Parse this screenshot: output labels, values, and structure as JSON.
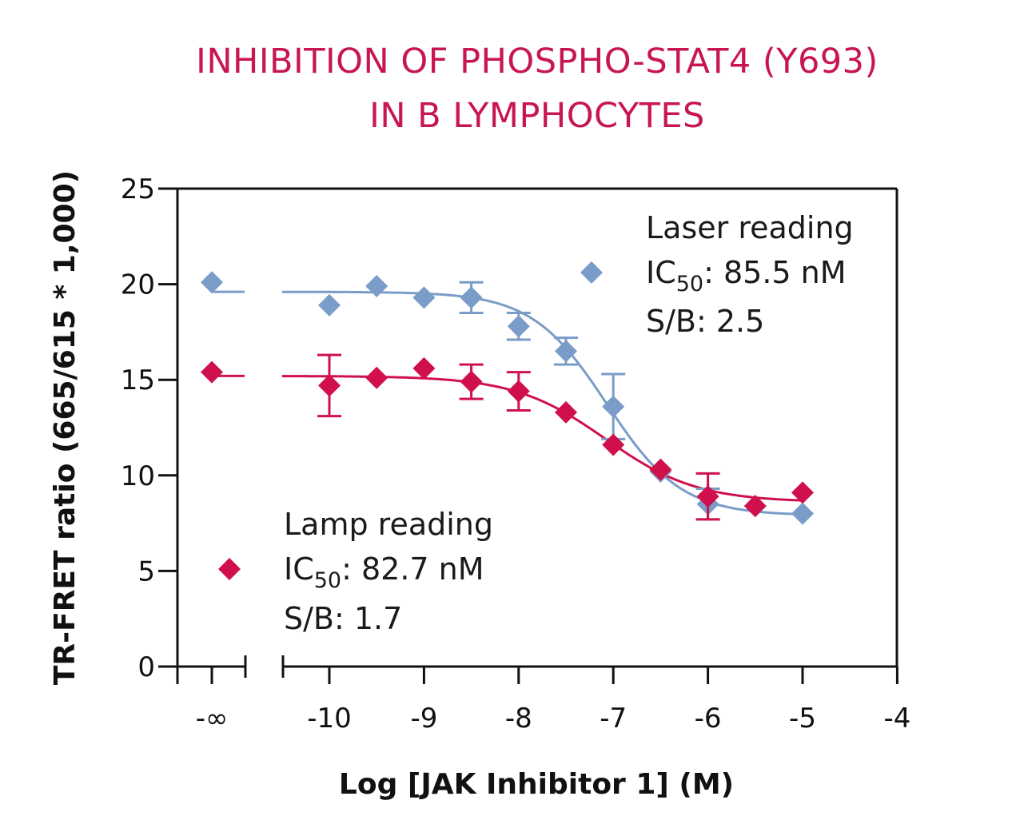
{
  "chart_data": {
    "type": "scatter",
    "title_line1": "INHIBITION OF PHOSPHO-STAT4 (Y693)",
    "title_line2": "IN B LYMPHOCYTES",
    "xlabel": "Log [JAK Inhibitor 1] (M)",
    "ylabel": "TR-FRET ratio (665/615 * 1,000)",
    "ylim": [
      0,
      25
    ],
    "xlim": [
      -10.5,
      -4
    ],
    "x_broken_axis": true,
    "y_ticks": [
      "0",
      "5",
      "10",
      "15",
      "20",
      "25"
    ],
    "y_tick_values": [
      0,
      5,
      10,
      15,
      20,
      25
    ],
    "x_ticks": [
      "-∞",
      "-10",
      "-9",
      "-8",
      "-7",
      "-6",
      "-5",
      "-4"
    ],
    "x_tick_values": [
      null,
      -10,
      -9,
      -8,
      -7,
      -6,
      -5,
      -4
    ],
    "series": [
      {
        "name": "Laser reading",
        "ic50_prefix": "IC",
        "ic50_sub": "50",
        "ic50_value": ": 85.5 nM",
        "sb_text": "S/B: 2.5",
        "color": "#7a9cc9",
        "zero_point": 20.1,
        "fit": {
          "top": 19.6,
          "bottom": 7.9,
          "logIC50": -7.07,
          "hill": 1.1
        },
        "points": [
          {
            "x": -10,
            "y": 18.9,
            "err": 0
          },
          {
            "x": -9.5,
            "y": 19.9,
            "err": 0
          },
          {
            "x": -9,
            "y": 19.3,
            "err": 0
          },
          {
            "x": -8.5,
            "y": 19.3,
            "err": 0.8
          },
          {
            "x": -8,
            "y": 17.8,
            "err": 0.7
          },
          {
            "x": -7.5,
            "y": 16.5,
            "err": 0.7
          },
          {
            "x": -7,
            "y": 13.6,
            "err": 1.7
          },
          {
            "x": -6.5,
            "y": 10.2,
            "err": 0
          },
          {
            "x": -6,
            "y": 8.5,
            "err": 0.8
          },
          {
            "x": -5.5,
            "y": 8.4,
            "err": 0
          },
          {
            "x": -5,
            "y": 8.0,
            "err": 0
          }
        ]
      },
      {
        "name": "Lamp reading",
        "ic50_prefix": "IC",
        "ic50_sub": "50",
        "ic50_value": ": 82.7 nM",
        "sb_text": "S/B: 1.7",
        "color": "#d0104c",
        "zero_point": 15.4,
        "fit": {
          "top": 15.2,
          "bottom": 8.6,
          "logIC50": -7.08,
          "hill": 0.9
        },
        "points": [
          {
            "x": -10,
            "y": 14.7,
            "err": 1.6
          },
          {
            "x": -9.5,
            "y": 15.1,
            "err": 0
          },
          {
            "x": -9,
            "y": 15.6,
            "err": 0
          },
          {
            "x": -8.5,
            "y": 14.9,
            "err": 0.9
          },
          {
            "x": -8,
            "y": 14.4,
            "err": 1.0
          },
          {
            "x": -7.5,
            "y": 13.3,
            "err": 0
          },
          {
            "x": -7,
            "y": 11.6,
            "err": 0
          },
          {
            "x": -6.5,
            "y": 10.3,
            "err": 0
          },
          {
            "x": -6,
            "y": 8.9,
            "err": 1.2
          },
          {
            "x": -5.5,
            "y": 8.4,
            "err": 0
          },
          {
            "x": -5,
            "y": 9.1,
            "err": 0
          }
        ]
      }
    ]
  }
}
